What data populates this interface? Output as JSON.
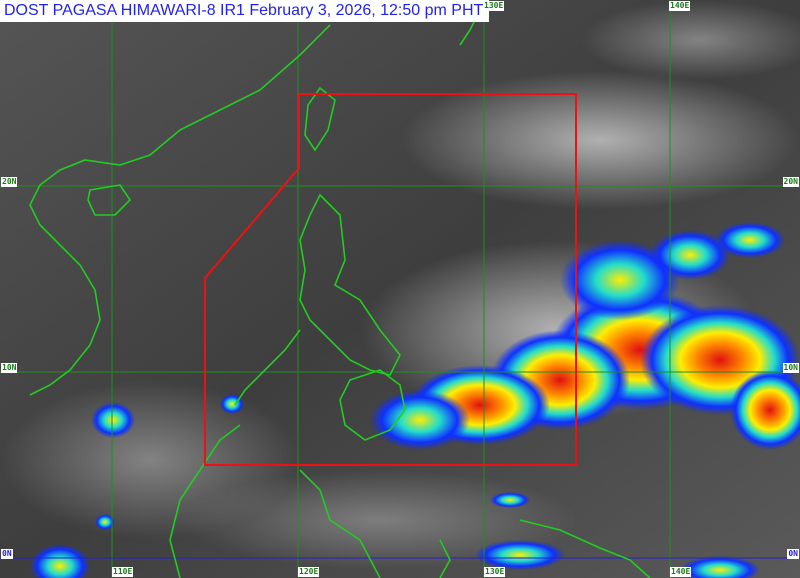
{
  "title": "DOST PAGASA HIMAWARI-8 IR1 February 3, 2026, 12:50 pm PHT",
  "grid": {
    "longitudes": [
      "110E",
      "120E",
      "130E",
      "140E"
    ],
    "latitudes": [
      "20N",
      "10N",
      "0N"
    ]
  },
  "colors": {
    "coastline": "#22cc22",
    "grid": "#1f8f1f",
    "equator": "#2222cc",
    "par_boundary": "#ee1111",
    "title_text": "#2222ee"
  },
  "overlay": "Philippine Area of Responsibility boundary (red polygon)"
}
